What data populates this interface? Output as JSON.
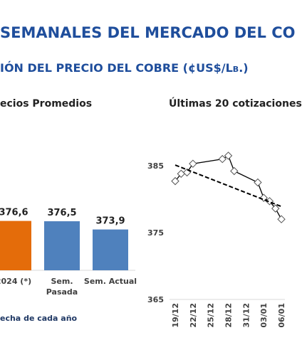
{
  "header": {
    "title": "SEMANALES DEL MERCADO DEL CO",
    "subtitle": "IÓN DEL PRECIO DEL COBRE (¢US$/Lb.)"
  },
  "chart_data": [
    {
      "type": "bar",
      "title": "ecios Promedios",
      "categories": [
        "2024 (*)",
        "Sem.\nPasada",
        "Sem. Actual"
      ],
      "values": [
        376.6,
        376.5,
        373.9
      ],
      "value_labels": [
        "376,6",
        "376,5",
        "373,9"
      ],
      "colors": [
        "#e46c0a",
        "#4f81bd",
        "#4f81bd"
      ],
      "ylim": [
        361,
        390
      ]
    },
    {
      "type": "line",
      "title": "Últimas 20 cotizaciones",
      "ylim": [
        365,
        390
      ],
      "yticks": [
        365,
        375,
        385
      ],
      "xticks": [
        "19/12",
        "22/12",
        "25/12",
        "28/12",
        "31/12",
        "03/01",
        "06/01"
      ],
      "series": [
        {
          "color": "#000000",
          "marker": "diamond",
          "x": [
            "19/12",
            "20/12",
            "21/12",
            "22/12",
            "27/12",
            "28/12",
            "29/12",
            "02/01",
            "03/01",
            "04/01",
            "05/01",
            "06/01"
          ],
          "values": [
            382.7,
            383.8,
            384.0,
            385.3,
            386.0,
            386.5,
            384.2,
            382.5,
            380.2,
            379.7,
            378.6,
            377.0
          ]
        },
        {
          "color": "#000000",
          "dashed": true,
          "x": [
            "19/12",
            "06/01"
          ],
          "values": [
            385.1,
            378.9
          ]
        }
      ]
    }
  ],
  "footnote": "echa de cada año"
}
